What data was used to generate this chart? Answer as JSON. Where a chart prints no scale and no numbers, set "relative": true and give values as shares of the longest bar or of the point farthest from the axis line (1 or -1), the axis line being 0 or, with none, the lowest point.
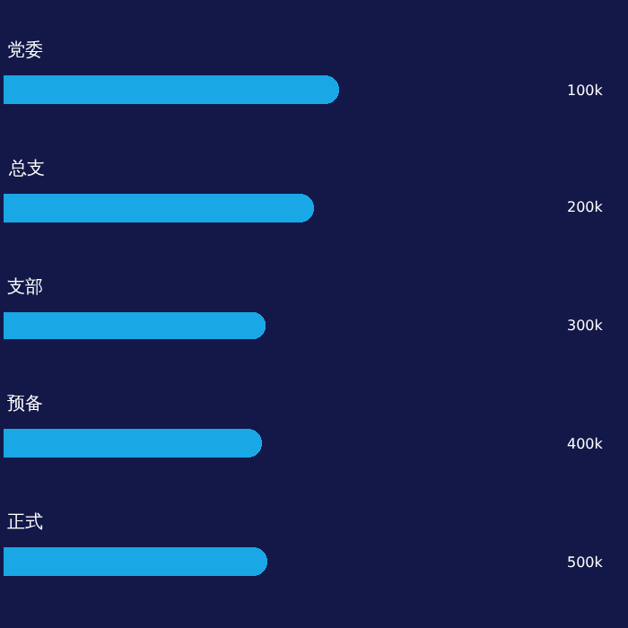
{
  "chart_data": {
    "type": "bar",
    "orientation": "horizontal",
    "relative": true,
    "categories": [
      "党委",
      "总支",
      "支部",
      "预备",
      "正式"
    ],
    "values": [
      1,
      0.925,
      0.78,
      0.77,
      0.79
    ],
    "color": "#1aa7e6",
    "annotations": [
      "100k",
      "200k",
      "300k",
      "400k",
      "500k"
    ]
  }
}
